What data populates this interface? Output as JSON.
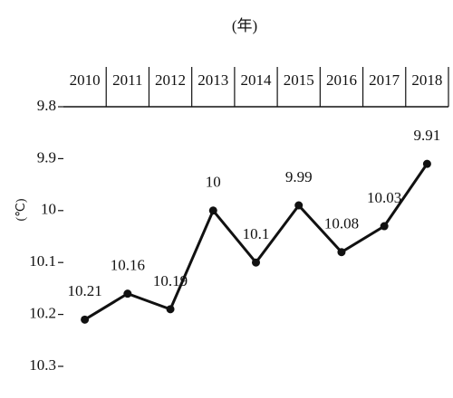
{
  "chart_data": {
    "type": "line",
    "title": "(年)",
    "y_label": "(℃)",
    "categories": [
      "2010",
      "2011",
      "2012",
      "2013",
      "2014",
      "2015",
      "2016",
      "2017",
      "2018"
    ],
    "values": [
      10.21,
      10.16,
      10.19,
      10,
      10.1,
      9.99,
      10.08,
      10.03,
      9.91
    ],
    "color": "#111111",
    "ylim": [
      9.8,
      10.3
    ],
    "yticks": [
      9.8,
      9.9,
      10,
      10.1,
      10.2,
      10.3
    ],
    "y_inverted": true,
    "grid": false
  }
}
